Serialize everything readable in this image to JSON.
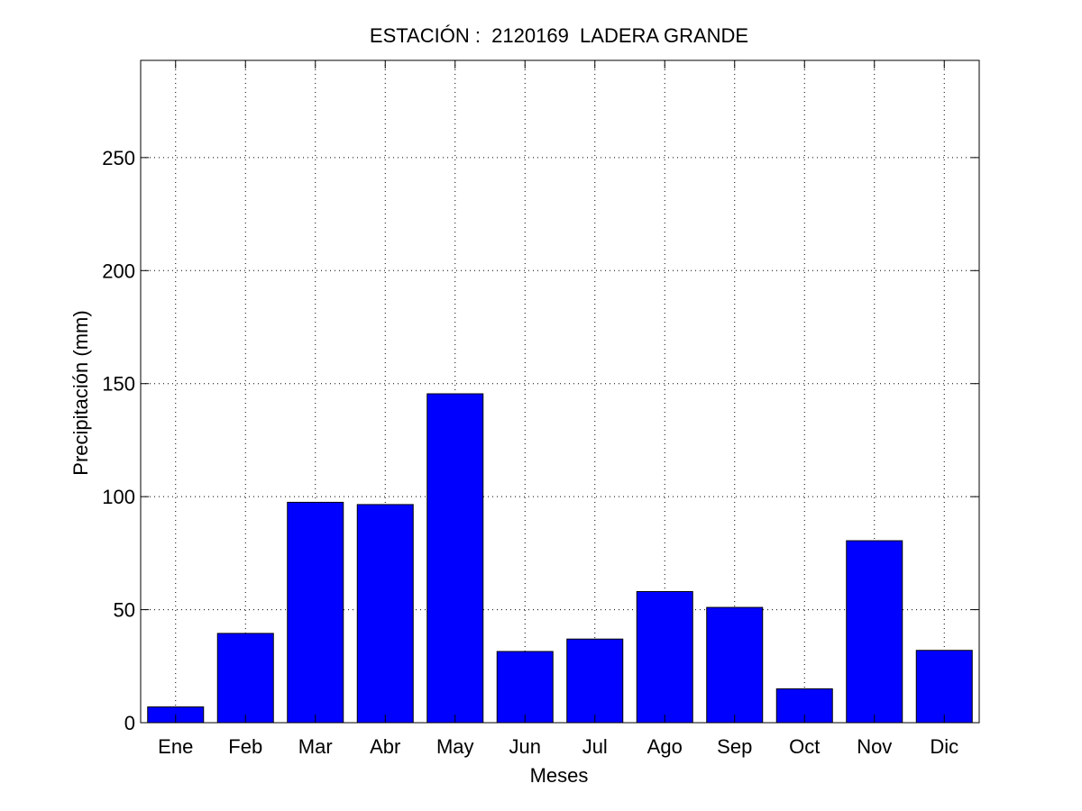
{
  "chart_data": {
    "type": "bar",
    "title": "ESTACIÓN :  2120169  LADERA GRANDE",
    "xlabel": "Meses",
    "ylabel": "Precipitación (mm)",
    "categories": [
      "Ene",
      "Feb",
      "Mar",
      "Abr",
      "May",
      "Jun",
      "Jul",
      "Ago",
      "Sep",
      "Oct",
      "Nov",
      "Dic"
    ],
    "values": [
      7,
      39.5,
      97.5,
      96.5,
      145.5,
      31.5,
      37,
      58,
      51,
      15,
      80.5,
      32
    ],
    "ylim": [
      0,
      293
    ],
    "yticks": [
      0,
      50,
      100,
      150,
      200,
      250
    ],
    "grid": true,
    "bar_color": "#0000ff",
    "bar_edge_color": "#000000"
  }
}
